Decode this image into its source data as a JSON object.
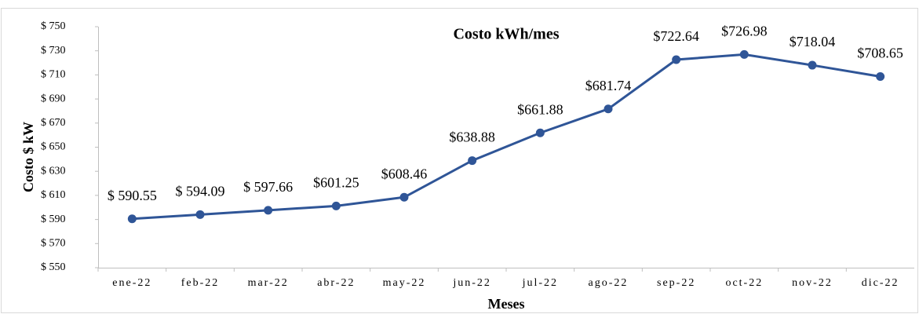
{
  "chart_data": {
    "type": "line",
    "title": "Costo kWh/mes",
    "x_label": "Meses",
    "y_label": "Costo $ kW",
    "categories": [
      "ene-22",
      "feb-22",
      "mar-22",
      "abr-22",
      "may-22",
      "jun-22",
      "jul-22",
      "ago-22",
      "sep-22",
      "oct-22",
      "nov-22",
      "dic-22"
    ],
    "series": [
      {
        "name": "Costo kWh/mes",
        "color": "#2f5597",
        "values": [
          590.55,
          594.09,
          597.66,
          601.25,
          608.46,
          638.88,
          661.88,
          681.74,
          722.64,
          726.98,
          718.04,
          708.65
        ],
        "value_labels": [
          "$ 590.55",
          "$ 594.09",
          "$ 597.66",
          "$601.25",
          "$608.46",
          "$638.88",
          "$661.88",
          "$681.74",
          "$722.64",
          "$726.98",
          "$718.04",
          "$708.65"
        ]
      }
    ],
    "ylim": [
      550,
      750
    ],
    "yticks": [
      {
        "value": 550,
        "label": "$ 550"
      },
      {
        "value": 570,
        "label": "$ 570"
      },
      {
        "value": 590,
        "label": "$ 590"
      },
      {
        "value": 610,
        "label": "$ 610"
      },
      {
        "value": 630,
        "label": "$ 630"
      },
      {
        "value": 650,
        "label": "$ 650"
      },
      {
        "value": 670,
        "label": "$ 670"
      },
      {
        "value": 690,
        "label": "$ 690"
      },
      {
        "value": 710,
        "label": "$ 710"
      },
      {
        "value": 730,
        "label": "$ 730"
      },
      {
        "value": 750,
        "label": "$ 750"
      }
    ],
    "grid": false
  }
}
